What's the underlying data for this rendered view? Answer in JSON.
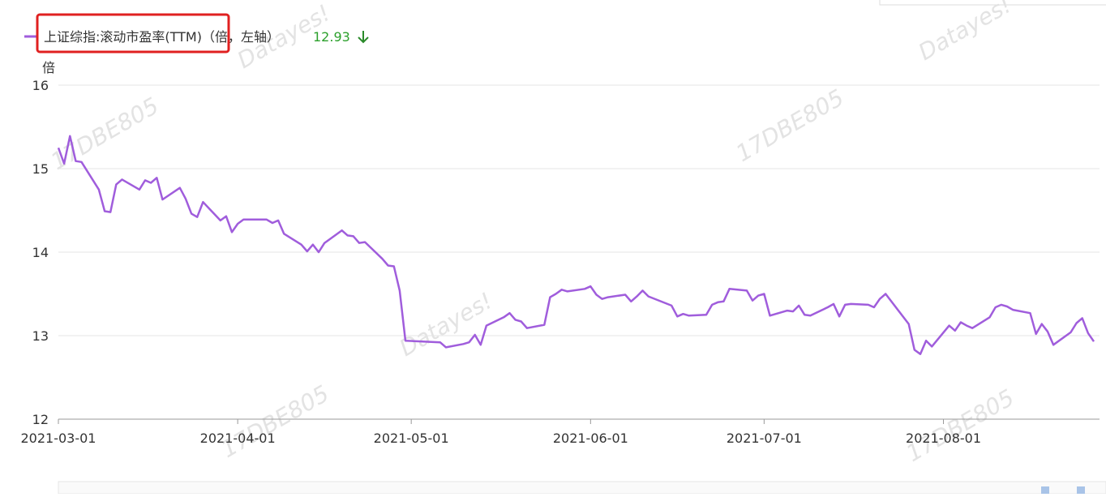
{
  "chart_data": {
    "type": "line",
    "y_unit": "倍",
    "legend_value": 12.93,
    "watermarks": [
      "Datayes!",
      "Datayes!",
      "17DBE805",
      "17DBE805",
      "Datayes!",
      "17DBE805",
      "17DBE805"
    ],
    "xlim": [
      "2021-03-01",
      "2021-08-27"
    ],
    "xticks": [
      "2021-03-01",
      "2021-04-01",
      "2021-05-01",
      "2021-06-01",
      "2021-07-01",
      "2021-08-01"
    ],
    "ylim": [
      12,
      16
    ],
    "yticks": [
      12,
      13,
      14,
      15,
      16
    ],
    "grid": true,
    "x": [
      "2021-03-01",
      "2021-03-02",
      "2021-03-03",
      "2021-03-04",
      "2021-03-05",
      "2021-03-08",
      "2021-03-09",
      "2021-03-10",
      "2021-03-11",
      "2021-03-12",
      "2021-03-15",
      "2021-03-16",
      "2021-03-17",
      "2021-03-18",
      "2021-03-19",
      "2021-03-22",
      "2021-03-23",
      "2021-03-24",
      "2021-03-25",
      "2021-03-26",
      "2021-03-29",
      "2021-03-30",
      "2021-03-31",
      "2021-04-01",
      "2021-04-02",
      "2021-04-06",
      "2021-04-07",
      "2021-04-08",
      "2021-04-09",
      "2021-04-12",
      "2021-04-13",
      "2021-04-14",
      "2021-04-15",
      "2021-04-16",
      "2021-04-19",
      "2021-04-20",
      "2021-04-21",
      "2021-04-22",
      "2021-04-23",
      "2021-04-26",
      "2021-04-27",
      "2021-04-28",
      "2021-04-29",
      "2021-04-30",
      "2021-05-06",
      "2021-05-07",
      "2021-05-10",
      "2021-05-11",
      "2021-05-12",
      "2021-05-13",
      "2021-05-14",
      "2021-05-17",
      "2021-05-18",
      "2021-05-19",
      "2021-05-20",
      "2021-05-21",
      "2021-05-24",
      "2021-05-25",
      "2021-05-26",
      "2021-05-27",
      "2021-05-28",
      "2021-05-31",
      "2021-06-01",
      "2021-06-02",
      "2021-06-03",
      "2021-06-04",
      "2021-06-07",
      "2021-06-08",
      "2021-06-09",
      "2021-06-10",
      "2021-06-11",
      "2021-06-15",
      "2021-06-16",
      "2021-06-17",
      "2021-06-18",
      "2021-06-21",
      "2021-06-22",
      "2021-06-23",
      "2021-06-24",
      "2021-06-25",
      "2021-06-28",
      "2021-06-29",
      "2021-06-30",
      "2021-07-01",
      "2021-07-02",
      "2021-07-05",
      "2021-07-06",
      "2021-07-07",
      "2021-07-08",
      "2021-07-09",
      "2021-07-12",
      "2021-07-13",
      "2021-07-14",
      "2021-07-15",
      "2021-07-16",
      "2021-07-19",
      "2021-07-20",
      "2021-07-21",
      "2021-07-22",
      "2021-07-23",
      "2021-07-26",
      "2021-07-27",
      "2021-07-28",
      "2021-07-29",
      "2021-07-30",
      "2021-08-02",
      "2021-08-03",
      "2021-08-04",
      "2021-08-05",
      "2021-08-06",
      "2021-08-09",
      "2021-08-10",
      "2021-08-11",
      "2021-08-12",
      "2021-08-13",
      "2021-08-16",
      "2021-08-17",
      "2021-08-18",
      "2021-08-19",
      "2021-08-20",
      "2021-08-23",
      "2021-08-24",
      "2021-08-25",
      "2021-08-26",
      "2021-08-27"
    ],
    "series": [
      {
        "name": "上证综指:滚动市盈率(TTM)（倍，左轴）",
        "color": "#a05ddc",
        "values": [
          15.25,
          15.06,
          15.39,
          15.09,
          15.08,
          14.75,
          14.49,
          14.48,
          14.81,
          14.87,
          14.75,
          14.86,
          14.83,
          14.89,
          14.63,
          14.77,
          14.64,
          14.46,
          14.42,
          14.6,
          14.38,
          14.43,
          14.24,
          14.34,
          14.39,
          14.39,
          14.35,
          14.38,
          14.22,
          14.09,
          14.01,
          14.09,
          14.0,
          14.11,
          14.26,
          14.2,
          14.19,
          14.11,
          14.12,
          13.92,
          13.84,
          13.83,
          13.54,
          12.94,
          12.92,
          12.86,
          12.9,
          12.92,
          13.01,
          12.89,
          13.12,
          13.22,
          13.27,
          13.19,
          13.17,
          13.09,
          13.13,
          13.46,
          13.5,
          13.55,
          13.53,
          13.56,
          13.59,
          13.49,
          13.44,
          13.46,
          13.49,
          13.41,
          13.47,
          13.54,
          13.47,
          13.36,
          13.23,
          13.26,
          13.24,
          13.25,
          13.37,
          13.4,
          13.41,
          13.56,
          13.54,
          13.42,
          13.48,
          13.5,
          13.24,
          13.3,
          13.29,
          13.36,
          13.25,
          13.24,
          13.34,
          13.38,
          13.23,
          13.37,
          13.38,
          13.37,
          13.34,
          13.44,
          13.5,
          13.41,
          13.14,
          12.83,
          12.78,
          12.94,
          12.87,
          13.12,
          13.06,
          13.16,
          13.12,
          13.09,
          13.22,
          13.34,
          13.37,
          13.35,
          13.31,
          13.27,
          13.02,
          13.14,
          13.05,
          12.89,
          13.04,
          13.15,
          13.21,
          13.03,
          12.93
        ]
      }
    ]
  }
}
